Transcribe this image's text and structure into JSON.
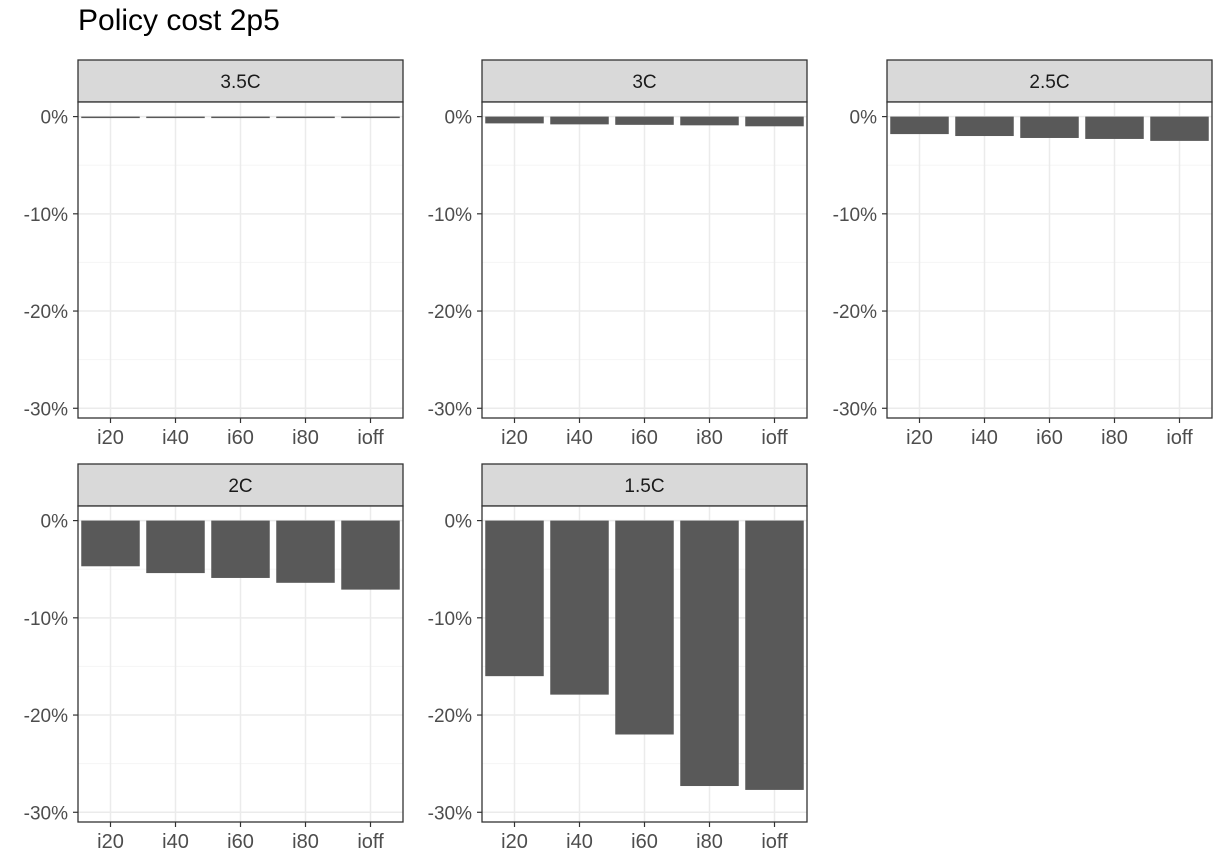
{
  "chart_data": {
    "type": "bar",
    "title": "Policy cost 2p5",
    "xlabel": "",
    "ylabel": "",
    "categories": [
      "i20",
      "i40",
      "i60",
      "i80",
      "ioff"
    ],
    "ylim": [
      -31,
      1.5
    ],
    "yticks": [
      0,
      -10,
      -20,
      -30
    ],
    "ytick_labels": [
      "0%",
      "-10%",
      "-20%",
      "-30%"
    ],
    "grid": true,
    "facets": [
      {
        "label": "3.5C",
        "values": [
          -0.15,
          -0.15,
          -0.15,
          -0.15,
          -0.15
        ]
      },
      {
        "label": "3C",
        "values": [
          -0.7,
          -0.8,
          -0.85,
          -0.9,
          -1.0
        ]
      },
      {
        "label": "2.5C",
        "values": [
          -1.8,
          -2.0,
          -2.2,
          -2.3,
          -2.5
        ]
      },
      {
        "label": "2C",
        "values": [
          -4.7,
          -5.4,
          -5.9,
          -6.4,
          -7.1
        ]
      },
      {
        "label": "1.5C",
        "values": [
          -16.0,
          -17.9,
          -22.0,
          -27.3,
          -27.7
        ]
      }
    ],
    "colors": {
      "bar": "#595959",
      "strip_fill": "#d9d9d9",
      "panel_border": "#333333",
      "grid_major": "#ebebeb",
      "grid_minor": "#f5f5f5",
      "tick_text": "#4d4d4d"
    }
  }
}
